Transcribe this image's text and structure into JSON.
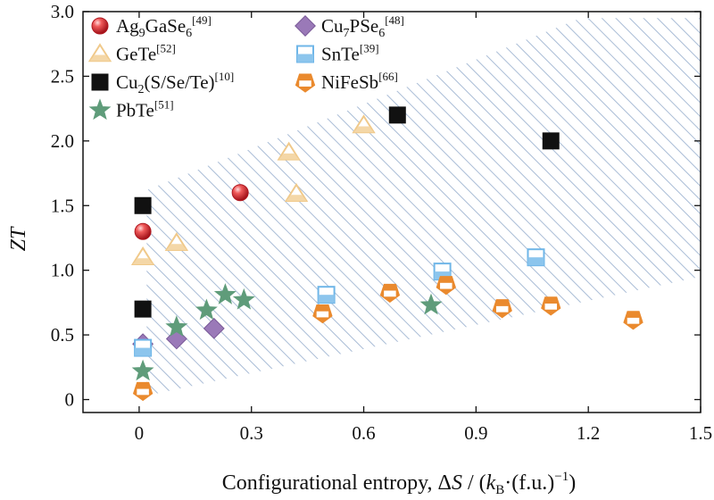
{
  "chart_data": {
    "type": "scatter",
    "xlabel": "Configurational entropy, ΔS / (kB·(f.u.)−1)",
    "xlabel_parts": {
      "prefix": "Configurational entropy, Δ",
      "S": "S",
      "slash": " / (",
      "k": "k",
      "k_sub": "B",
      "fu": "·(f.u.)",
      "exp": "−1",
      "close": ")"
    },
    "ylabel": "ZT",
    "xlim": [
      -0.15,
      1.5
    ],
    "ylim": [
      -0.1,
      3.0
    ],
    "xticks": [
      0,
      0.3,
      0.6,
      0.9,
      1.2,
      1.5
    ],
    "xtick_labels": [
      "0",
      "0.3",
      "0.6",
      "0.9",
      "1.2",
      "1.5"
    ],
    "yticks": [
      0,
      0.5,
      1.0,
      1.5,
      2.0,
      2.5,
      3.0
    ],
    "ytick_labels": [
      "0",
      "0.5",
      "1.0",
      "1.5",
      "2.0",
      "2.5",
      "3.0"
    ],
    "legend_placement": "top-left",
    "shaded_band": {
      "description": "hatched region",
      "color": "#a9bcd6",
      "polygon": [
        [
          0.02,
          0.03
        ],
        [
          1.5,
          0.95
        ],
        [
          1.5,
          2.95
        ],
        [
          1.18,
          2.95
        ],
        [
          0.02,
          1.62
        ]
      ]
    },
    "series": [
      {
        "name": "Ag9GaSe6",
        "name_base": "Ag",
        "sub1": "9",
        "mid": "GaSe",
        "sub2": "6",
        "ref": "[49]",
        "marker": "sphere",
        "color": "#d9282f",
        "points": [
          [
            0.01,
            1.3
          ],
          [
            0.27,
            1.6
          ]
        ]
      },
      {
        "name": "Cu7PSe6",
        "name_base": "Cu",
        "sub1": "7",
        "mid": "PSe",
        "sub2": "6",
        "ref": "[48]",
        "marker": "diamond",
        "color": "#9a79b8",
        "points": [
          [
            0.01,
            0.43
          ],
          [
            0.1,
            0.47
          ],
          [
            0.2,
            0.55
          ]
        ]
      },
      {
        "name": "GeTe",
        "name_base": "GeTe",
        "ref": "[52]",
        "marker": "triangle",
        "color": "#f0c98a",
        "points": [
          [
            0.01,
            1.1
          ],
          [
            0.1,
            1.21
          ],
          [
            0.4,
            1.91
          ],
          [
            0.42,
            1.59
          ],
          [
            0.6,
            2.12
          ]
        ]
      },
      {
        "name": "SnTe",
        "name_base": "SnTe",
        "ref": "[39]",
        "marker": "square-half",
        "color": "#6fb6e8",
        "points": [
          [
            0.01,
            0.4
          ],
          [
            0.5,
            0.81
          ],
          [
            0.81,
            0.99
          ],
          [
            1.06,
            1.1
          ]
        ]
      },
      {
        "name": "Cu2(S/Se/Te)",
        "name_base": "Cu",
        "sub1": "2",
        "mid": "(S/Se/Te)",
        "ref": "[10]",
        "marker": "square",
        "color": "#111111",
        "points": [
          [
            0.01,
            1.5
          ],
          [
            0.01,
            0.7
          ],
          [
            0.69,
            2.2
          ],
          [
            1.1,
            2.0
          ]
        ]
      },
      {
        "name": "NiFeSb",
        "name_base": "NiFeSb",
        "ref": "[66]",
        "marker": "pentagon",
        "color": "#ea8a2e",
        "points": [
          [
            0.01,
            0.07
          ],
          [
            0.49,
            0.67
          ],
          [
            0.67,
            0.83
          ],
          [
            0.82,
            0.89
          ],
          [
            0.97,
            0.71
          ],
          [
            1.1,
            0.73
          ],
          [
            1.32,
            0.62
          ]
        ]
      },
      {
        "name": "PbTe",
        "name_base": "PbTe",
        "ref": "[51]",
        "marker": "star",
        "color": "#5f9c7a",
        "points": [
          [
            0.01,
            0.22
          ],
          [
            0.1,
            0.56
          ],
          [
            0.18,
            0.69
          ],
          [
            0.23,
            0.81
          ],
          [
            0.28,
            0.77
          ],
          [
            0.78,
            0.73
          ]
        ]
      }
    ]
  }
}
